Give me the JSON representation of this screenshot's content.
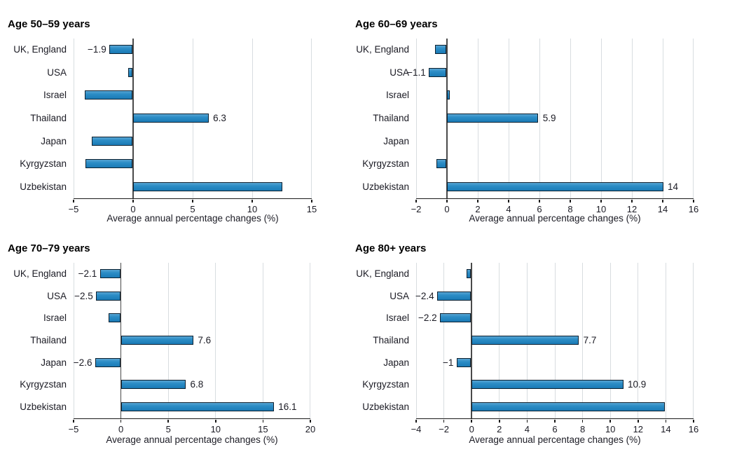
{
  "figure": {
    "background": "#ffffff",
    "description_note": "Four horizontal bar charts of average annual percentage changes by country and age group"
  },
  "colors": {
    "bar_fill": "#1a7ab5",
    "bar_mid": "#2c8dc6",
    "bar_light": "#58a5d2",
    "bar_border": "#0c2030",
    "gridline": "#d8dde0",
    "zero_line": "#4a4a4a",
    "axis": "#1a1a1a",
    "text": "#1b1b24",
    "title": "#000000"
  },
  "chart_data": [
    {
      "type": "bar",
      "orientation": "horizontal",
      "title": "Age 50–59 years",
      "xlabel": "Average annual percentage changes (%)",
      "categories": [
        "UK, England",
        "USA",
        "Israel",
        "Thailand",
        "Japan",
        "Kyrgyzstan",
        "Uzbekistan"
      ],
      "values": [
        -1.9,
        -0.3,
        -4.0,
        6.3,
        -3.4,
        -3.9,
        12.5
      ],
      "value_labels": [
        "−1.9",
        null,
        null,
        "6.3",
        null,
        null,
        null
      ],
      "xlim": [
        -5,
        15
      ],
      "xticks": [
        -5,
        0,
        5,
        10,
        15
      ],
      "grid": "vertical gridlines at ticks, dark zero line",
      "legend": "none"
    },
    {
      "type": "bar",
      "orientation": "horizontal",
      "title": "Age 60–69 years",
      "xlabel": "Average annual percentage changes (%)",
      "categories": [
        "UK, England",
        "USA",
        "Israel",
        "Thailand",
        "Japan",
        "Kyrgyzstan",
        "Uzbekistan"
      ],
      "values": [
        -0.7,
        -1.1,
        0.15,
        5.9,
        0,
        -0.6,
        14
      ],
      "value_labels": [
        null,
        "−1.1",
        null,
        "5.9",
        null,
        null,
        "14"
      ],
      "xlim": [
        -2,
        16
      ],
      "xticks": [
        -2,
        0,
        2,
        4,
        6,
        8,
        10,
        12,
        14,
        16
      ],
      "grid": "vertical gridlines at ticks, dark zero line",
      "legend": "none"
    },
    {
      "type": "bar",
      "orientation": "horizontal",
      "title": "Age 70–79 years",
      "xlabel": "Average annual percentage changes (%)",
      "categories": [
        "UK, England",
        "USA",
        "Israel",
        "Thailand",
        "Japan",
        "Kyrgyzstan",
        "Uzbekistan"
      ],
      "values": [
        -2.1,
        -2.5,
        -1.2,
        7.6,
        -2.6,
        6.8,
        16.1
      ],
      "value_labels": [
        "−2.1",
        "−2.5",
        null,
        "7.6",
        "−2.6",
        "6.8",
        "16.1"
      ],
      "xlim": [
        -5,
        20
      ],
      "xticks": [
        -5,
        0,
        5,
        10,
        15,
        20
      ],
      "grid": "vertical gridlines at ticks, dark zero line",
      "legend": "none"
    },
    {
      "type": "bar",
      "orientation": "horizontal",
      "title": "Age 80+ years",
      "xlabel": "Average annual percentage changes (%)",
      "categories": [
        "UK, England",
        "USA",
        "Israel",
        "Thailand",
        "Japan",
        "Kyrgyzstan",
        "Uzbekistan"
      ],
      "values": [
        -0.3,
        -2.4,
        -2.2,
        7.7,
        -1,
        10.9,
        13.9
      ],
      "value_labels": [
        null,
        "−2.4",
        "−2.2",
        "7.7",
        "−1",
        "10.9",
        null
      ],
      "xlim": [
        -4,
        16
      ],
      "xticks": [
        -4,
        -2,
        0,
        2,
        4,
        6,
        8,
        10,
        12,
        14,
        16
      ],
      "grid": "vertical gridlines at ticks, dark zero line",
      "legend": "none"
    }
  ]
}
